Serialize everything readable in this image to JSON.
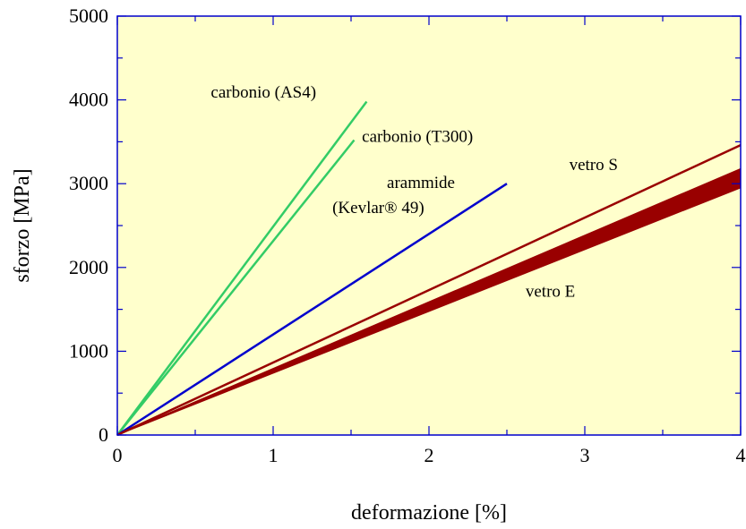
{
  "chart_data": {
    "type": "line",
    "xlabel": "deformazione [%]",
    "ylabel": "sforzo [MPa]",
    "xlim": [
      0,
      4
    ],
    "ylim": [
      0,
      5000
    ],
    "x_ticks": [
      0,
      1,
      2,
      3,
      4
    ],
    "y_ticks": [
      0,
      1000,
      2000,
      3000,
      4000,
      5000
    ],
    "x_tick_labels": [
      "0",
      "1",
      "2",
      "3",
      "4"
    ],
    "y_tick_labels": [
      "0",
      "1000",
      "2000",
      "3000",
      "4000",
      "5000"
    ],
    "grid": false,
    "background_color": "#FFFFCC",
    "frame_color": "#0000CC",
    "series": [
      {
        "id": "as4",
        "color": "#33CC66",
        "x": [
          0,
          1.6
        ],
        "y": [
          0,
          3980
        ]
      },
      {
        "id": "t300",
        "color": "#33CC66",
        "x": [
          0,
          1.52
        ],
        "y": [
          0,
          3520
        ]
      },
      {
        "id": "kevlar",
        "color": "#0000CC",
        "x": [
          0,
          2.5
        ],
        "y": [
          0,
          3000
        ]
      },
      {
        "id": "vetro-s",
        "color": "#990000",
        "x": [
          0,
          4.0
        ],
        "y": [
          0,
          3460
        ]
      },
      {
        "id": "vetro-e",
        "color": "#990000",
        "type": "band",
        "x": [
          0,
          4.0
        ],
        "y_upper": [
          0,
          3180
        ],
        "y_lower": [
          0,
          2950
        ]
      }
    ],
    "annotations": [
      {
        "id": "as4",
        "text": "carbonio (AS4)",
        "x": 0.6,
        "y": 4030
      },
      {
        "id": "t300",
        "text": "carbonio (T300)",
        "x": 1.57,
        "y": 3500
      },
      {
        "id": "kevlar1",
        "text": "arammide",
        "x": 1.73,
        "y": 2950
      },
      {
        "id": "kevlar2",
        "text": "(Kevlar® 49)",
        "x": 1.38,
        "y": 2650
      },
      {
        "id": "vetro-s",
        "text": "vetro S",
        "x": 2.9,
        "y": 3160
      },
      {
        "id": "vetro-e",
        "text": "vetro E",
        "x": 2.62,
        "y": 1650
      }
    ]
  }
}
